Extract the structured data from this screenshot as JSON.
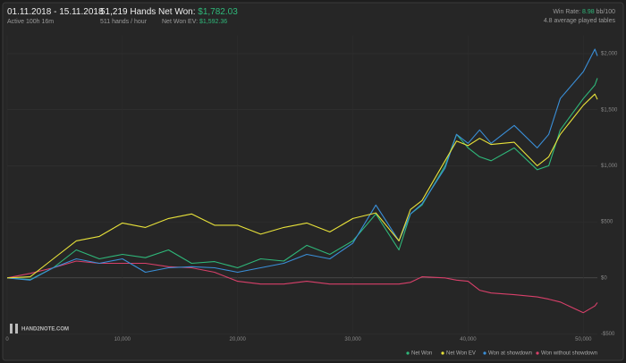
{
  "header": {
    "date_range": "01.11.2018 - 15.11.2018",
    "active": "Active 100h 16m",
    "hands": "51,219 Hands",
    "hands_rate": "511 hands / hour",
    "net_won_label": "Net Won:",
    "net_won_value": "$1,782.03",
    "net_won_ev_label": "Net Won  EV:",
    "net_won_ev_value": "$1,592.36",
    "win_rate_label": "Win Rate:",
    "win_rate_value": "8.98",
    "win_rate_unit": "bb/100",
    "tables": "4.8 average played tables"
  },
  "logo": "HAND2NOTE.COM",
  "chart_data": {
    "type": "line",
    "x": [
      0,
      2000,
      4000,
      6000,
      8000,
      10000,
      12000,
      14000,
      16000,
      18000,
      20000,
      22000,
      24000,
      26000,
      28000,
      30000,
      32000,
      34000,
      35000,
      36000,
      38000,
      39000,
      40000,
      41000,
      42000,
      44000,
      46000,
      47000,
      48000,
      50000,
      51000,
      51219
    ],
    "series": [
      {
        "name": "Net Won",
        "color": "#2fb87a",
        "values": [
          0,
          -15,
          90,
          250,
          170,
          210,
          180,
          250,
          130,
          145,
          90,
          170,
          150,
          290,
          210,
          330,
          570,
          250,
          570,
          650,
          1000,
          1280,
          1160,
          1080,
          1045,
          1160,
          965,
          1000,
          1320,
          1600,
          1720,
          1782
        ]
      },
      {
        "name": "Net Won  EV",
        "color": "#e8e23a",
        "values": [
          0,
          10,
          170,
          330,
          370,
          490,
          450,
          530,
          570,
          470,
          470,
          390,
          450,
          490,
          410,
          530,
          580,
          330,
          610,
          690,
          1045,
          1220,
          1180,
          1245,
          1190,
          1210,
          1000,
          1080,
          1280,
          1540,
          1640,
          1592
        ]
      },
      {
        "name": "Won at showdown",
        "color": "#3a8fd8",
        "values": [
          0,
          -20,
          90,
          170,
          130,
          170,
          50,
          90,
          100,
          90,
          50,
          90,
          130,
          210,
          170,
          310,
          650,
          330,
          570,
          660,
          980,
          1280,
          1200,
          1320,
          1200,
          1360,
          1160,
          1280,
          1600,
          1840,
          2040,
          1980
        ]
      },
      {
        "name": "Won without showdown",
        "color": "#d8406a",
        "values": [
          0,
          40,
          90,
          150,
          130,
          130,
          130,
          100,
          90,
          50,
          -30,
          -55,
          -55,
          -30,
          -55,
          -55,
          -55,
          -55,
          -40,
          10,
          0,
          -20,
          -30,
          -110,
          -135,
          -150,
          -170,
          -190,
          -215,
          -310,
          -250,
          -220
        ]
      }
    ],
    "xlim": [
      0,
      51219
    ],
    "ylim": [
      -500,
      2100
    ],
    "xticks": [
      0,
      {
        "value": 10000,
        "label": "10,000"
      },
      {
        "value": 20000,
        "label": "20,000"
      },
      {
        "value": 30000,
        "label": "30,000"
      },
      {
        "value": 40000,
        "label": "40,000"
      },
      {
        "value": 50000,
        "label": "50,000"
      }
    ],
    "yticks": [
      {
        "value": -500,
        "label": "-$500"
      },
      {
        "value": 0,
        "label": "$0"
      },
      {
        "value": 500,
        "label": "$500"
      },
      {
        "value": 1000,
        "label": "$1,000"
      },
      {
        "value": 1500,
        "label": "$1,500"
      },
      {
        "value": 2000,
        "label": "$2,000"
      }
    ],
    "grid": true
  }
}
